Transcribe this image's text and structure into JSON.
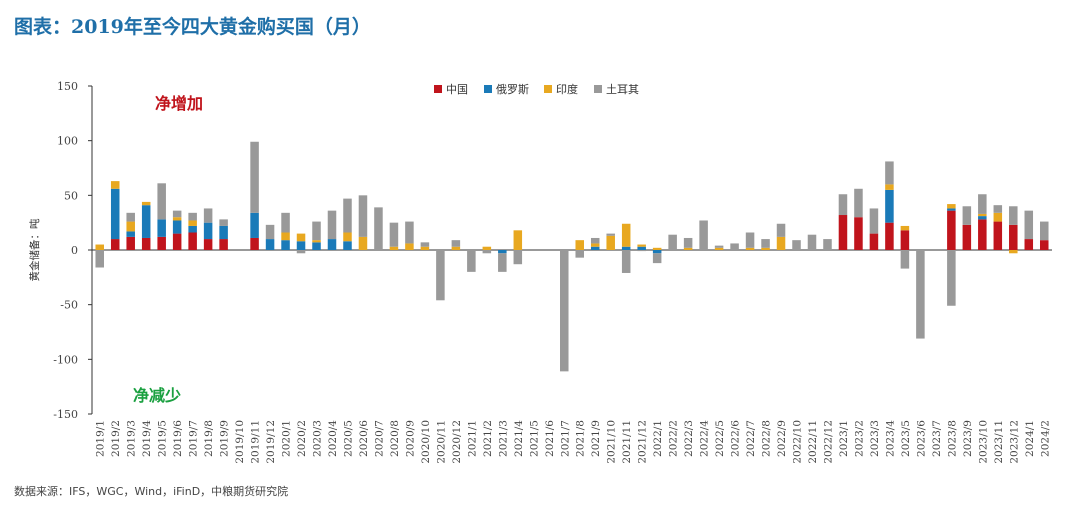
{
  "title": "图表：2019年至今四大黄金购买国（月）",
  "source": "数据来源：IFS，WGC，Wind，iFinD，中粮期货研究院",
  "chart_data": {
    "type": "bar",
    "stacked": true,
    "ylabel": "黄金储备：吨",
    "ylim": [
      -150,
      150
    ],
    "yticks": [
      -150,
      -100,
      -50,
      0,
      50,
      100,
      150
    ],
    "legend_position": "top-center",
    "annotations": [
      {
        "text": "净增加",
        "color": "#c0141c",
        "position": "upper-left"
      },
      {
        "text": "净减少",
        "color": "#1aa040",
        "position": "lower-left"
      }
    ],
    "categories": [
      "2019/1",
      "2019/2",
      "2019/3",
      "2019/4",
      "2019/5",
      "2019/6",
      "2019/7",
      "2019/8",
      "2019/9",
      "2019/10",
      "2019/11",
      "2019/12",
      "2020/1",
      "2020/2",
      "2020/3",
      "2020/4",
      "2020/5",
      "2020/6",
      "2020/7",
      "2020/8",
      "2020/9",
      "2020/10",
      "2020/11",
      "2020/12",
      "2021/1",
      "2021/2",
      "2021/3",
      "2021/4",
      "2021/5",
      "2021/6",
      "2021/7",
      "2021/8",
      "2021/9",
      "2021/10",
      "2021/11",
      "2021/12",
      "2022/1",
      "2022/2",
      "2022/3",
      "2022/4",
      "2022/5",
      "2022/6",
      "2022/7",
      "2022/8",
      "2022/9",
      "2022/10",
      "2022/11",
      "2022/12",
      "2023/1",
      "2023/2",
      "2023/3",
      "2023/4",
      "2023/5",
      "2023/6",
      "2023/7",
      "2023/8",
      "2023/9",
      "2023/10",
      "2023/11",
      "2023/12",
      "2024/1",
      "2024/2"
    ],
    "xtick_labels": [
      "2019/1",
      "2019/2",
      "2019/3",
      "2019/4",
      "2019/5",
      "2019/6",
      "2019/7",
      "2019/8",
      "2019/9",
      "2019/10",
      "2019/11",
      "2019/12",
      "2020/1",
      "2020/2",
      "2020/3",
      "2020/4",
      "2020/5",
      "2020/6",
      "2020/7",
      "2020/8",
      "2020/9",
      "2020/10",
      "2020/11",
      "2020/12",
      "2021/1",
      "2021/2",
      "2021/3",
      "2021/4",
      "2021/5",
      "2021/6",
      "2021/7",
      "2021/8",
      "2021/9",
      "2021/10",
      "2021/11",
      "2021/12",
      "2022/1",
      "2022/2",
      "2022/3",
      "2022/4",
      "2022/5",
      "2022/6",
      "2022/7",
      "2022/8",
      "2022/9",
      "2022/10",
      "2022/11",
      "2022/12",
      "2023/1",
      "2023/2",
      "2023/3",
      "2023/4",
      "2023/5",
      "2023/6",
      "2023/7",
      "2023/8",
      "2023/9",
      "2023/10",
      "2023/11",
      "2023/12",
      "2024/1",
      "2024/2"
    ],
    "series": [
      {
        "name": "中国",
        "color": "#c0141c",
        "values": [
          0,
          10,
          12,
          11,
          12,
          15,
          16,
          10,
          10,
          0,
          11,
          0,
          0,
          0,
          0,
          0,
          0,
          0,
          0,
          0,
          0,
          0,
          0,
          0,
          0,
          0,
          0,
          0,
          0,
          0,
          0,
          0,
          0,
          0,
          0,
          0,
          0,
          0,
          0,
          0,
          0,
          0,
          0,
          0,
          0,
          0,
          0,
          0,
          32,
          30,
          15,
          25,
          18,
          0,
          0,
          36,
          23,
          28,
          26,
          23,
          10,
          9
        ]
      },
      {
        "name": "俄罗斯",
        "color": "#1a7ab8",
        "values": [
          0,
          46,
          5,
          30,
          16,
          12,
          6,
          15,
          12,
          0,
          23,
          10,
          9,
          8,
          7,
          10,
          8,
          0,
          0,
          0,
          0,
          0,
          0,
          0,
          0,
          0,
          -3,
          0,
          0,
          0,
          0,
          0,
          3,
          0,
          3,
          3,
          -3,
          0,
          0,
          0,
          0,
          0,
          0,
          0,
          0,
          0,
          0,
          0,
          0,
          0,
          0,
          30,
          0,
          0,
          0,
          2,
          0,
          3,
          0,
          0,
          0,
          0
        ]
      },
      {
        "name": "印度",
        "color": "#e8a820",
        "values": [
          5,
          7,
          9,
          3,
          0,
          3,
          5,
          0,
          0,
          0,
          0,
          0,
          7,
          7,
          2,
          0,
          8,
          12,
          0,
          3,
          6,
          3,
          0,
          3,
          0,
          3,
          0,
          18,
          0,
          0,
          0,
          9,
          3,
          13,
          21,
          2,
          2,
          0,
          2,
          0,
          2,
          0,
          2,
          2,
          12,
          0,
          0,
          0,
          0,
          0,
          0,
          5,
          4,
          0,
          0,
          4,
          0,
          2,
          8,
          -3,
          0,
          0
        ]
      },
      {
        "name": "土耳其",
        "color": "#999999",
        "values": [
          -16,
          0,
          8,
          0,
          33,
          6,
          7,
          13,
          6,
          0,
          65,
          13,
          18,
          -3,
          17,
          26,
          31,
          38,
          39,
          22,
          20,
          4,
          -46,
          6,
          -20,
          -3,
          -17,
          -13,
          0,
          0,
          -111,
          -7,
          5,
          2,
          -21,
          -1,
          -9,
          14,
          9,
          27,
          2,
          6,
          14,
          8,
          12,
          9,
          14,
          10,
          19,
          26,
          23,
          21,
          -17,
          -81,
          0,
          -51,
          17,
          18,
          7,
          17,
          26,
          17
        ]
      }
    ]
  }
}
